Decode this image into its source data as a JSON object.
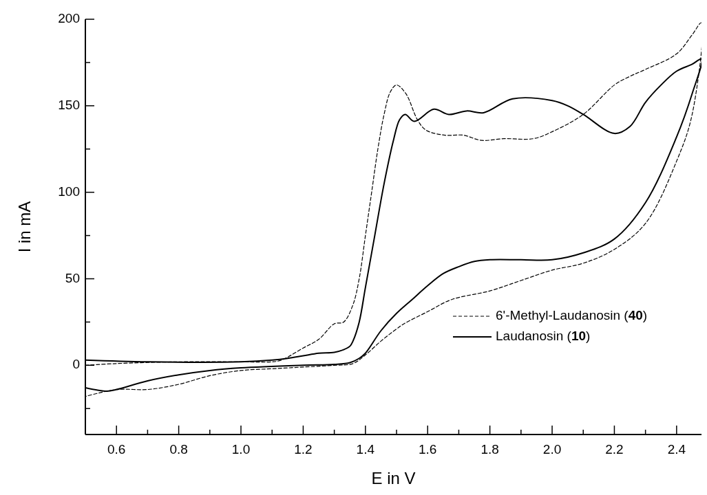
{
  "chart_data": {
    "type": "line",
    "xlabel": "E in V",
    "ylabel": "I in mA",
    "xlim": [
      0.5,
      2.48
    ],
    "ylim": [
      -40,
      200
    ],
    "xticks": [
      {
        "value": 0.5,
        "label": null
      },
      0.6,
      {
        "value": 0.7,
        "label": null
      },
      0.8,
      {
        "value": 0.9,
        "label": null
      },
      {
        "value": 1.0,
        "label": "1.0"
      },
      {
        "value": 1.1,
        "label": null
      },
      1.2,
      {
        "value": 1.3,
        "label": null
      },
      1.4,
      {
        "value": 1.5,
        "label": null
      },
      1.6,
      {
        "value": 1.7,
        "label": null
      },
      1.8,
      {
        "value": 1.9,
        "label": null
      },
      {
        "value": 2.0,
        "label": "2.0"
      },
      {
        "value": 2.1,
        "label": null
      },
      2.2,
      {
        "value": 2.3,
        "label": null
      },
      2.4
    ],
    "yticks": [
      {
        "value": -25,
        "label": null
      },
      0,
      {
        "value": 25,
        "label": null
      },
      50,
      {
        "value": 75,
        "label": null
      },
      100,
      {
        "value": 125,
        "label": null
      },
      150,
      {
        "value": 175,
        "label": null
      },
      200
    ],
    "grid": false,
    "legend": "bottom right",
    "marker": "none",
    "series": [
      {
        "name": "6'-Methyl-Laudanosin (40)",
        "color": "#000000",
        "line_style": "dashed",
        "x": [
          0.5,
          0.6,
          0.8,
          1.0,
          1.1,
          1.13,
          1.2,
          1.25,
          1.3,
          1.33,
          1.36,
          1.38,
          1.4,
          1.42,
          1.44,
          1.46,
          1.48,
          1.5,
          1.53,
          1.567,
          1.594,
          1.655,
          1.714,
          1.773,
          1.845,
          1.94,
          2.0,
          2.1,
          2.2,
          2.25,
          2.3,
          2.4,
          2.45,
          2.48,
          2.45,
          2.4,
          2.3,
          2.2,
          2.1,
          2.0,
          1.9,
          1.8,
          1.677,
          1.6,
          1.524,
          1.5,
          1.45,
          1.4,
          1.36,
          1.3,
          1.2,
          1.1,
          1.0,
          0.9,
          0.8,
          0.7,
          0.6,
          0.5
        ],
        "values": [
          0,
          1,
          2,
          2,
          2,
          3,
          10,
          15,
          24,
          25,
          35,
          50,
          75,
          100,
          125,
          145,
          158,
          162,
          157,
          142,
          136,
          133,
          133,
          130,
          131,
          131,
          135,
          145,
          162,
          167,
          171,
          180,
          191,
          198,
          145,
          118,
          82,
          67,
          59,
          55,
          49,
          43,
          38,
          31,
          24,
          21,
          14,
          6,
          1,
          0,
          -1,
          -2,
          -3,
          -6,
          -11,
          -14,
          -14,
          -18
        ]
      },
      {
        "name": "Laudanosin (10)",
        "color": "#000000",
        "line_style": "solid",
        "x": [
          0.5,
          0.7,
          1.0,
          1.1,
          1.15,
          1.2,
          1.25,
          1.3,
          1.33,
          1.35,
          1.36,
          1.38,
          1.4,
          1.43,
          1.46,
          1.49,
          1.51,
          1.528,
          1.557,
          1.62,
          1.668,
          1.725,
          1.78,
          1.873,
          2.0,
          2.05,
          2.1,
          2.2,
          2.25,
          2.3,
          2.35,
          2.4,
          2.45,
          2.48,
          2.45,
          2.4,
          2.3,
          2.2,
          2.1,
          2.0,
          1.9,
          1.8,
          1.75,
          1.7,
          1.65,
          1.6,
          1.55,
          1.5,
          1.45,
          1.4,
          1.38,
          1.35,
          1.3,
          1.2,
          1.0,
          0.9,
          0.8,
          0.7,
          0.6,
          0.57,
          0.5
        ],
        "values": [
          3,
          2,
          2,
          3,
          4,
          5.5,
          7,
          7.5,
          9,
          11,
          14,
          25,
          45,
          75,
          105,
          130,
          142,
          145,
          141,
          148,
          145,
          147,
          146,
          154,
          153,
          150,
          145,
          134,
          138,
          152,
          162,
          170,
          174,
          177,
          157,
          132,
          94,
          73,
          65,
          61,
          61,
          61,
          60,
          57,
          53,
          46,
          38,
          30,
          20,
          7,
          4,
          1.5,
          0.5,
          0,
          -1.5,
          -3,
          -5.5,
          -9,
          -14,
          -15,
          -13
        ]
      }
    ]
  }
}
